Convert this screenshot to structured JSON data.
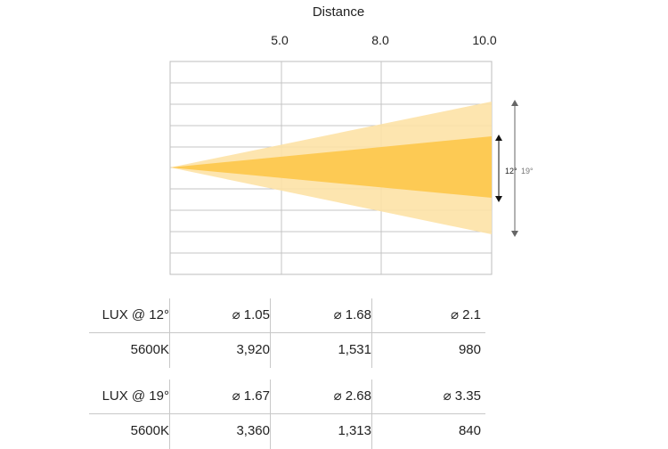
{
  "header": {
    "title": "Distance"
  },
  "distances": [
    "5.0",
    "8.0",
    "10.0"
  ],
  "beams": {
    "narrow_label": "12°",
    "wide_label": "19°",
    "narrow_color": "#fdc74a",
    "wide_color": "#fde2a6"
  },
  "tables": [
    {
      "header_label": "LUX @ 12°",
      "diameters": [
        "⌀ 1.05",
        "⌀ 1.68",
        "⌀ 2.1"
      ],
      "row_label": "5600K",
      "values": [
        "3,920",
        "1,531",
        "980"
      ]
    },
    {
      "header_label": "LUX @ 19°",
      "diameters": [
        "⌀ 1.67",
        "⌀ 2.68",
        "⌀ 3.35"
      ],
      "row_label": "5600K",
      "values": [
        "3,360",
        "1,313",
        "840"
      ]
    }
  ]
}
